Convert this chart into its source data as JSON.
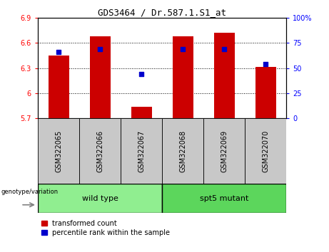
{
  "title": "GDS3464 / Dr.587.1.S1_at",
  "samples": [
    "GSM322065",
    "GSM322066",
    "GSM322067",
    "GSM322068",
    "GSM322069",
    "GSM322070"
  ],
  "group_spans": [
    [
      0,
      3,
      "wild type",
      "#90EE90"
    ],
    [
      3,
      6,
      "spt5 mutant",
      "#5CD65C"
    ]
  ],
  "bar_values": [
    6.45,
    6.68,
    5.84,
    6.68,
    6.72,
    6.31
  ],
  "percentile_values": [
    66,
    69,
    44,
    69,
    69,
    54
  ],
  "ylim_left": [
    5.7,
    6.9
  ],
  "ylim_right": [
    0,
    100
  ],
  "yticks_left": [
    5.7,
    6.0,
    6.3,
    6.6,
    6.9
  ],
  "ytick_labels_left": [
    "5.7",
    "6",
    "6.3",
    "6.6",
    "6.9"
  ],
  "yticks_right": [
    0,
    25,
    50,
    75,
    100
  ],
  "ytick_labels_right": [
    "0",
    "25",
    "50",
    "75",
    "100%"
  ],
  "bar_color": "#CC0000",
  "dot_color": "#0000CC",
  "bar_width": 0.5,
  "plot_bg_color": "#FFFFFF",
  "grid_lines": [
    6.0,
    6.3,
    6.6
  ],
  "legend_red_label": "transformed count",
  "legend_blue_label": "percentile rank within the sample",
  "genotype_label": "genotype/variation",
  "sample_box_color": "#C8C8C8",
  "title_fontsize": 9,
  "tick_fontsize": 7,
  "label_fontsize": 7,
  "group_fontsize": 8
}
